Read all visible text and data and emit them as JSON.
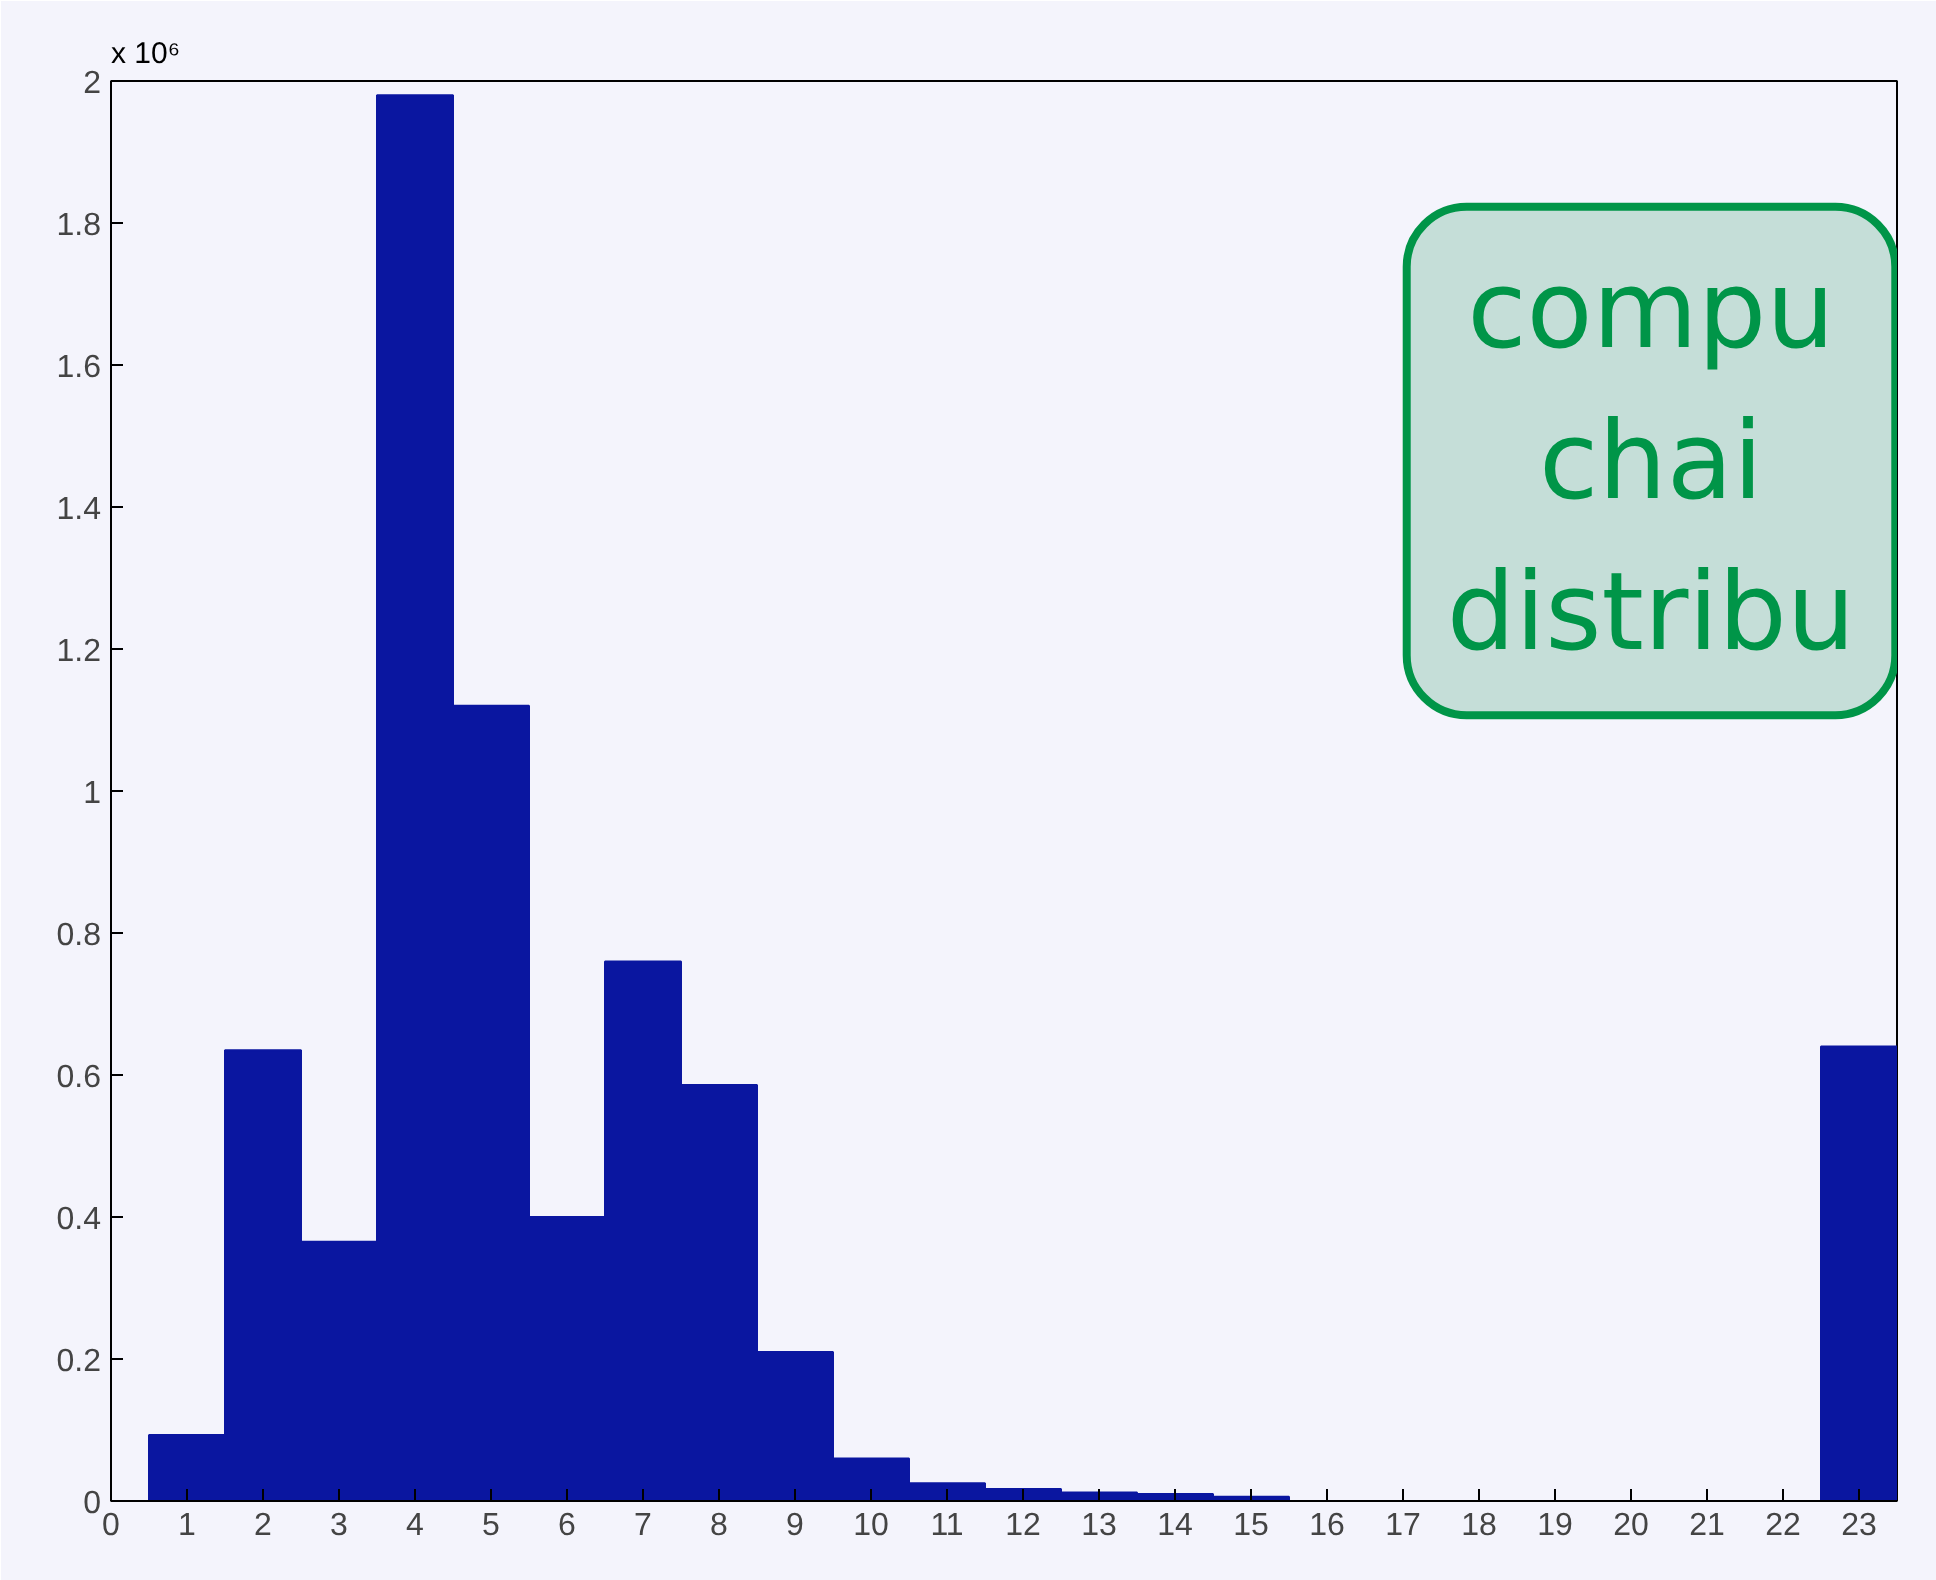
{
  "chart_data": {
    "type": "histogram",
    "bins": [
      0.5,
      1.5,
      2.5,
      3.5,
      4.5,
      5.5,
      6.5,
      7.5,
      8.5,
      9.5,
      10.5,
      11.5,
      12.5,
      13.5,
      14.5,
      15.5,
      16.5,
      17.5,
      18.5,
      19.5,
      20.5,
      21.5,
      22.5,
      23.5
    ],
    "values": [
      0.093,
      0.635,
      0.365,
      1.98,
      1.12,
      0.4,
      0.76,
      0.586,
      0.21,
      0.06,
      0.025,
      0.017,
      0.012,
      0.01,
      0.006,
      null,
      null,
      null,
      null,
      null,
      null,
      null,
      0.64
    ],
    "color": "#0a16a0",
    "xlim": [
      0,
      23.5
    ],
    "xticks": [
      0,
      1,
      2,
      3,
      4,
      5,
      6,
      7,
      8,
      9,
      10,
      11,
      12,
      13,
      14,
      15,
      16,
      17,
      18,
      19,
      20,
      21,
      22,
      23
    ],
    "ylim": [
      0,
      2
    ],
    "yticks": [
      0,
      0.2,
      0.4,
      0.6,
      0.8,
      1,
      1.2,
      1.4,
      1.6,
      1.8,
      2
    ],
    "grid": false,
    "annotations": [
      "x 10⁶",
      "compu\nchai\ndistribu"
    ]
  }
}
